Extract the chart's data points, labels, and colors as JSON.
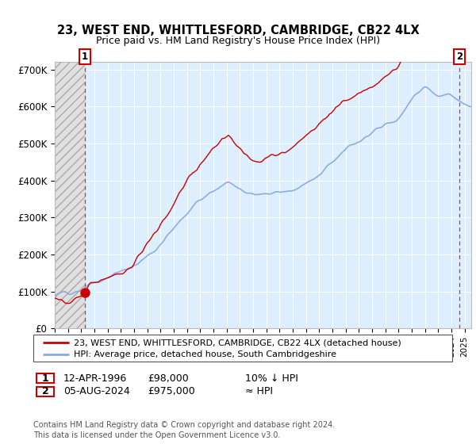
{
  "title": "23, WEST END, WHITTLESFORD, CAMBRIDGE, CB22 4LX",
  "subtitle": "Price paid vs. HM Land Registry's House Price Index (HPI)",
  "legend_line1": "23, WEST END, WHITTLESFORD, CAMBRIDGE, CB22 4LX (detached house)",
  "legend_line2": "HPI: Average price, detached house, South Cambridgeshire",
  "annotation1_date": "12-APR-1996",
  "annotation1_price": "£98,000",
  "annotation1_hpi": "10% ↓ HPI",
  "annotation2_date": "05-AUG-2024",
  "annotation2_price": "£975,000",
  "annotation2_hpi": "≈ HPI",
  "footer": "Contains HM Land Registry data © Crown copyright and database right 2024.\nThis data is licensed under the Open Government Licence v3.0.",
  "plot_bg": "#ddeeff",
  "hatch_bg": "#e0e0e0",
  "red_line_color": "#cc0000",
  "blue_line_color": "#88aadd",
  "red_dot_color": "#cc0000",
  "ylim": [
    0,
    720000
  ],
  "yticks": [
    0,
    100000,
    200000,
    300000,
    400000,
    500000,
    600000,
    700000
  ],
  "ytick_labels": [
    "£0",
    "£100K",
    "£200K",
    "£300K",
    "£400K",
    "£500K",
    "£600K",
    "£700K"
  ],
  "sale1_year": 1996.28,
  "sale1_price": 98000,
  "sale2_year": 2024.59,
  "sale2_price": 975000
}
